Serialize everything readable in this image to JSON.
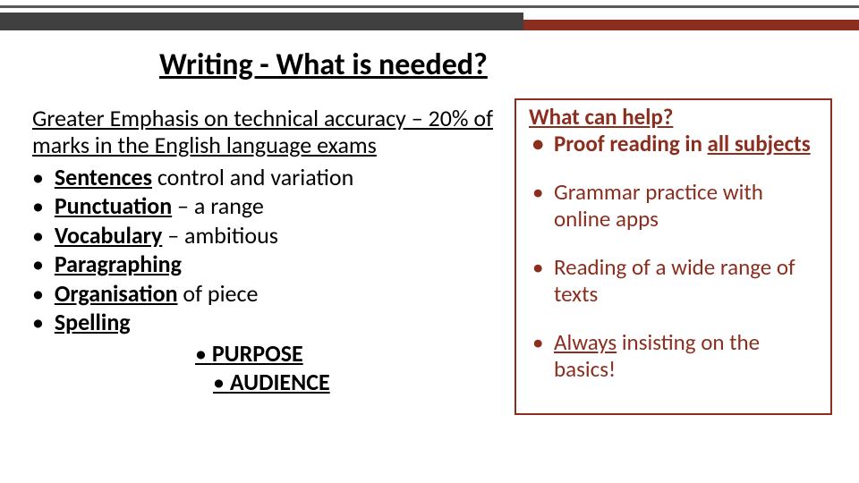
{
  "title": "Writing  - What is needed?",
  "left": {
    "intro": "Greater Emphasis on technical accuracy – 20% of marks in the English language exams",
    "items": {
      "i1_u": "Sentences",
      "i1_r": " control and variation",
      "i2_u": "Punctuation",
      "i2_r": " –  a range",
      "i3_u": "Vocabulary",
      "i3_r": " –  ambitious",
      "i4_u": "Paragraphing",
      "i5_u": "Organisation",
      "i5_r": " of piece",
      "i6_u": "Spelling"
    },
    "sub": {
      "a": "PURPOSE",
      "b": "AUDIENCE"
    }
  },
  "right": {
    "title": "What can help?",
    "items": {
      "r1_a": "Proof reading in ",
      "r1_b": "all subjects",
      "r2": "Grammar practice with online apps",
      "r3": "Reading of a wide range of texts",
      "r4_a": "Always",
      "r4_b": " insisting on the basics!"
    }
  },
  "colors": {
    "accent": "#8b2e1f",
    "bar_dark": "#404040",
    "text": "#000000",
    "background": "#ffffff"
  }
}
